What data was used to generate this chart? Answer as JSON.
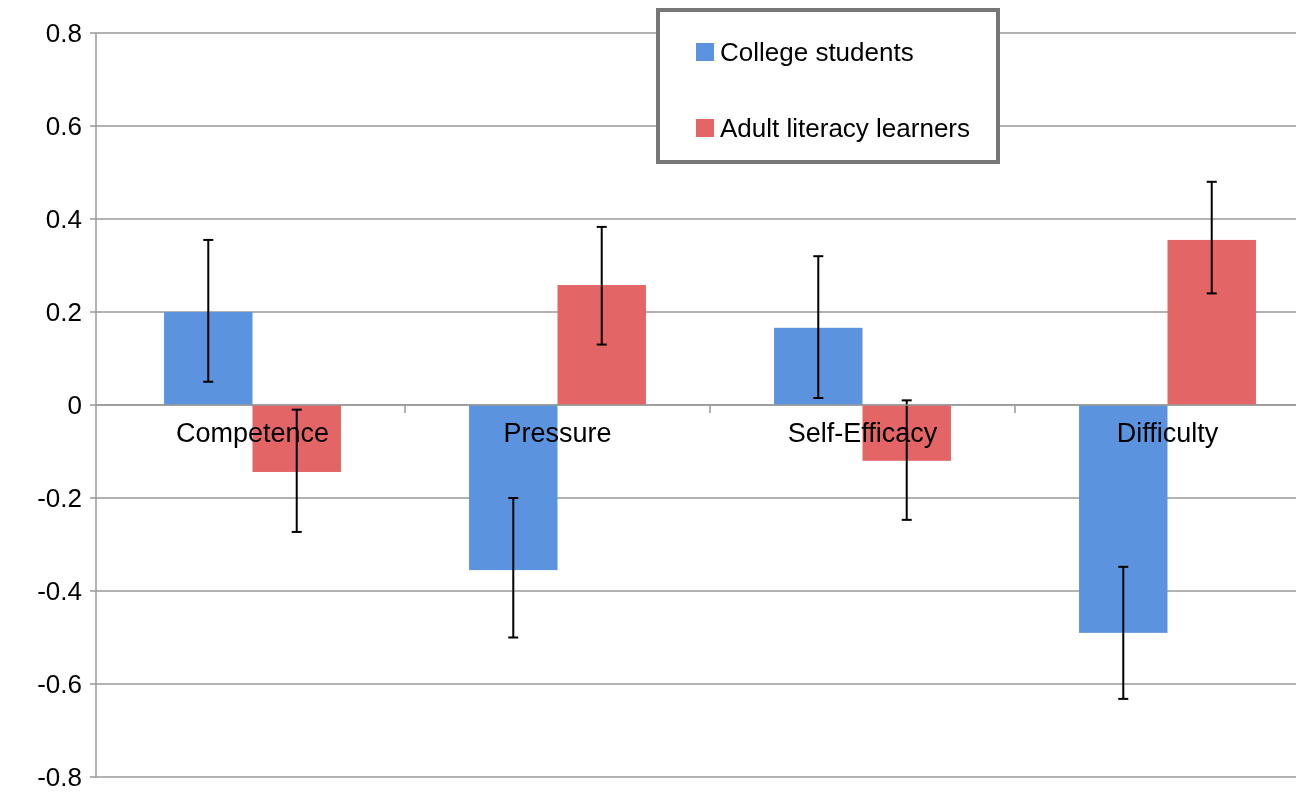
{
  "chart_data": {
    "type": "bar",
    "categories": [
      "Competence",
      "Pressure",
      "Self-Efficacy",
      "Difficulty"
    ],
    "series": [
      {
        "name": "College students",
        "color": "#5b93de",
        "values": [
          0.2,
          -0.355,
          0.166,
          -0.49
        ],
        "errors": [
          [
            0.05,
            0.355
          ],
          [
            -0.5,
            -0.2
          ],
          [
            0.015,
            0.32
          ],
          [
            -0.632,
            -0.348
          ]
        ]
      },
      {
        "name": "Adult literacy learners",
        "color": "#e46565",
        "values": [
          -0.144,
          0.258,
          -0.12,
          0.355
        ],
        "errors": [
          [
            -0.273,
            -0.01
          ],
          [
            0.13,
            0.383
          ],
          [
            -0.247,
            0.01
          ],
          [
            0.24,
            0.48
          ]
        ]
      }
    ],
    "ylim": [
      -0.8,
      0.8
    ],
    "yticks": [
      -0.8,
      -0.6,
      -0.4,
      -0.2,
      0,
      0.2,
      0.4,
      0.6,
      0.8
    ],
    "grid": "y",
    "legend": "top right"
  }
}
